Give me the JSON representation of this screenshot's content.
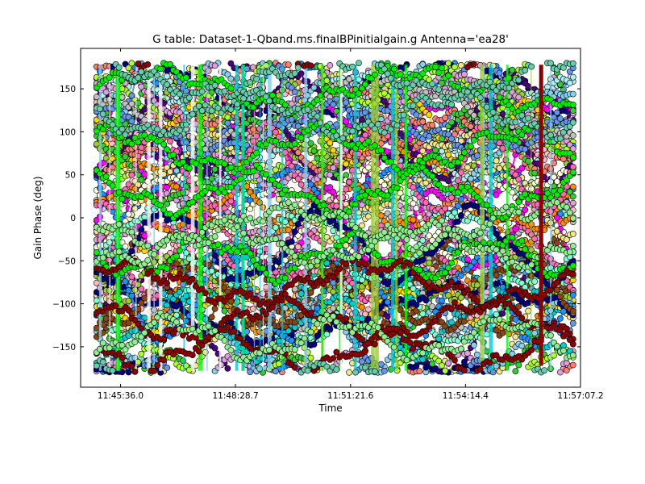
{
  "chart_data": {
    "type": "scatter",
    "title": "G table: Dataset-1-Qband.ms.finalBPinitialgain.g      Antenna='ea28'",
    "xlabel": "Time",
    "ylabel": "Gain Phase (deg)",
    "x_tick_labels": [
      "11:45:36.0",
      "11:48:28.7",
      "11:51:21.6",
      "11:54:14.4",
      "11:57:07.2"
    ],
    "x_tick_seconds": [
      42336.0,
      42508.7,
      42681.6,
      42854.4,
      43027.2
    ],
    "xlim_seconds": [
      42276.0,
      43027.2
    ],
    "y_ticks": [
      -150,
      -100,
      -50,
      0,
      50,
      100,
      150
    ],
    "ylim": [
      -197,
      197
    ],
    "grid": false,
    "time_range_seconds": [
      42300,
      43016
    ],
    "channels_plotted": "many overlapping spectral channels / correlations per antenna ea28",
    "series": [
      {
        "color": "#00ee00",
        "values_style": "phase tracks",
        "centers": [
          150,
          80,
          30,
          -45
        ]
      },
      {
        "color": "#8b0000",
        "values_style": "phase tracks",
        "centers": [
          -75,
          -120,
          -155
        ]
      },
      {
        "color": "#66cdaa",
        "values_style": "phase tracks",
        "centers": [
          165,
          120
        ]
      },
      {
        "color": "#90ee90",
        "values_style": "phase tracks",
        "centers": [
          -10,
          -30,
          -140
        ]
      }
    ],
    "colors": [
      "#ff00ff",
      "#4b0082",
      "#ffd700",
      "#ff8c00",
      "#fa8072",
      "#ffb6c1",
      "#afeeee",
      "#87ceeb",
      "#9acd32",
      "#adff2f",
      "#32cd32",
      "#00ced1",
      "#1e90ff",
      "#8b4513",
      "#f0e68c",
      "#ffffe0",
      "#dda0dd",
      "#c0c0c0",
      "#6495ed",
      "#7fffd4",
      "#ff69b4",
      "#000080"
    ]
  }
}
